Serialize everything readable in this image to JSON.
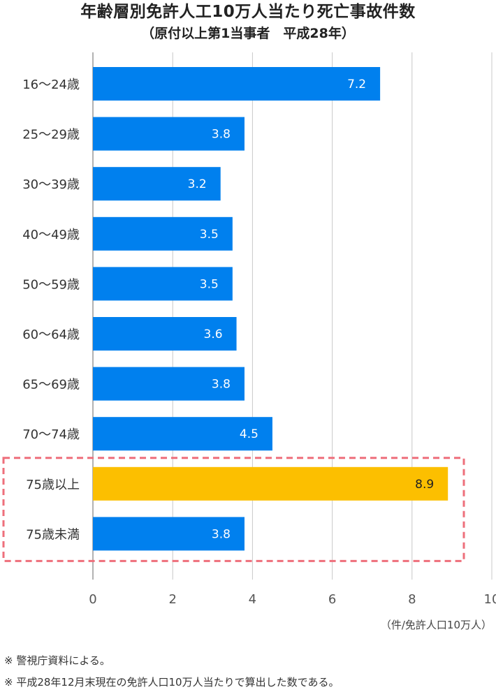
{
  "title": "年齢層別免許人工10万人当たり死亡事故件数",
  "subtitle": "（原付以上第1当事者　平成28年）",
  "unit_label": "（件/免許人口10万人）",
  "notes": [
    "※ 警視庁資料による。",
    "※ 平成28年12月末現在の免許人口10万人当たりで算出した数である。"
  ],
  "colors": {
    "bar": "#0080ee",
    "highlight": "#fcbf00",
    "highlight_box": "#ee6f7b",
    "grid": "#c8c8c8",
    "axis": "#999999"
  },
  "chart_data": {
    "type": "bar",
    "orientation": "horizontal",
    "title": "年齢層別免許人工10万人当たり死亡事故件数",
    "subtitle": "（原付以上第1当事者　平成28年）",
    "categories": [
      "16〜24歳",
      "25〜29歳",
      "30〜39歳",
      "40〜49歳",
      "50〜59歳",
      "60〜64歳",
      "65〜69歳",
      "70〜74歳",
      "75歳以上",
      "75歳未満"
    ],
    "values": [
      7.2,
      3.8,
      3.2,
      3.5,
      3.5,
      3.6,
      3.8,
      4.5,
      8.9,
      3.8
    ],
    "labels": [
      "7.2",
      "3.8",
      "3.2",
      "3.5",
      "3.5",
      "3.6",
      "3.8",
      "4.5",
      "8.9",
      "3.8"
    ],
    "highlighted": [
      "75歳以上"
    ],
    "boxed": [
      "75歳以上",
      "75歳未満"
    ],
    "xlim": [
      0,
      10
    ],
    "xticks": [
      "0",
      "2",
      "4",
      "6",
      "8",
      "10"
    ],
    "xlabel": "（件/免許人口10万人）",
    "grid": true
  }
}
